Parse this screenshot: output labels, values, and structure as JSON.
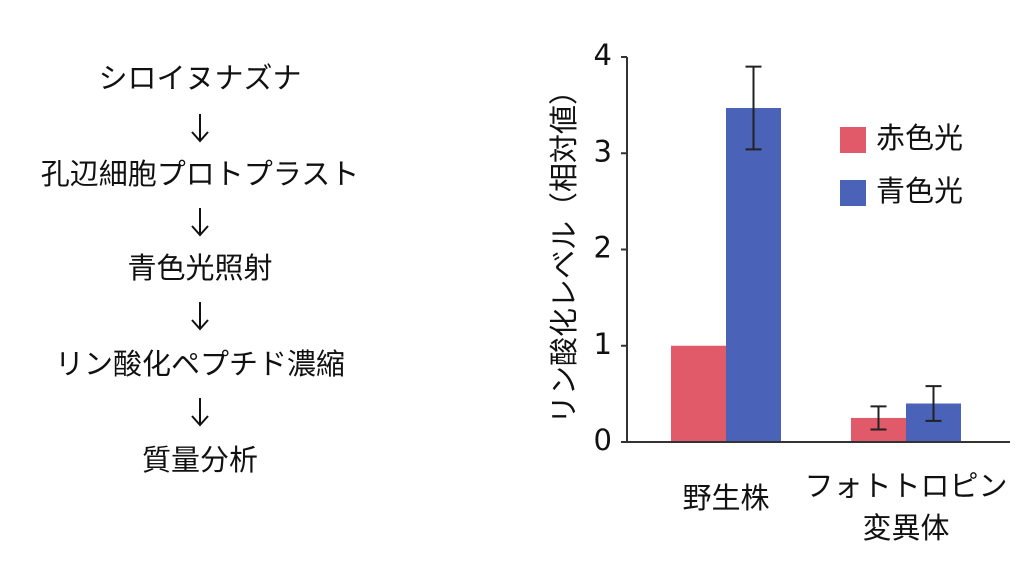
{
  "flow": {
    "steps": [
      "シロイヌナズナ",
      "孔辺細胞プロトプラスト",
      "青色光照射",
      "リン酸化ペプチド濃縮",
      "質量分析"
    ]
  },
  "chart_data": {
    "type": "bar",
    "y_label": "リン酸化レベル（相対値）",
    "categories": [
      "野生株",
      "フォトトロピン\n変異体"
    ],
    "series": [
      {
        "name": "赤色光",
        "color": "#e05a6a",
        "values": [
          1,
          0.25
        ],
        "errors": [
          null,
          0.12
        ]
      },
      {
        "name": "青色光",
        "color": "#4a63b8",
        "values": [
          3.47,
          0.4
        ],
        "errors": [
          0.43,
          0.18
        ]
      }
    ],
    "ylim": [
      0,
      4
    ],
    "yticks": [
      0,
      1,
      2,
      3,
      4
    ],
    "grid": false,
    "legend": "upper right"
  }
}
